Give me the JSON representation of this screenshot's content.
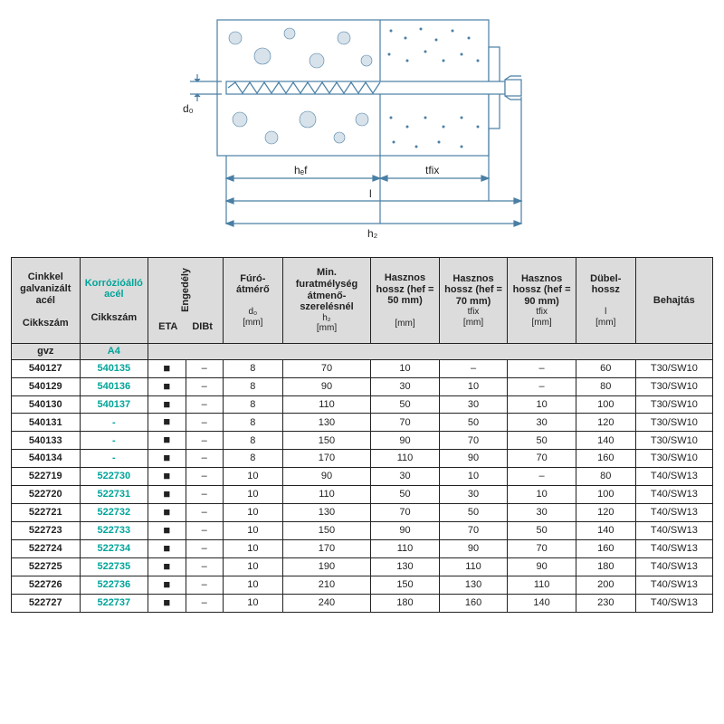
{
  "diagram": {
    "stroke": "#4a7fa5",
    "labels": {
      "d0": "d₀",
      "hef": "hₑf",
      "tfix": "tfix",
      "l": "l",
      "h2": "h₂"
    }
  },
  "header": {
    "col1_top": "Cinkkel galvanizált acél",
    "col1_bot": "Cikkszám",
    "col2_top": "Korrózióálló acél",
    "col2_bot": "Cikkszám",
    "eng": "Engedély",
    "eta": "ETA",
    "dibt": "DIBt",
    "d0_top": "Fúró-átmérő",
    "d0_sym": "d₀",
    "d0_unit": "[mm]",
    "h2_top": "Min. furatmélység átmenő-szerelésnél",
    "h2_sym": "h₂",
    "h2_unit": "[mm]",
    "hef50_top": "Hasznos hossz (hef = 50 mm)",
    "hef50_unit": "[mm]",
    "hef70_top": "Hasznos hossz (hef = 70 mm)",
    "hef70_sym": "tfix",
    "hef70_unit": "[mm]",
    "hef90_top": "Hasznos hossz (hef = 90 mm)",
    "hef90_sym": "tfix",
    "hef90_unit": "[mm]",
    "l_top": "Dübel-hossz",
    "l_sym": "l",
    "l_unit": "[mm]",
    "beh": "Behajtás",
    "sub_gvz": "gvz",
    "sub_a4": "A4"
  },
  "rows": [
    {
      "c1": "540127",
      "c2": "540135",
      "eta": "■",
      "dibt": "–",
      "d0": "8",
      "h2": "70",
      "h50": "10",
      "h70": "–",
      "h90": "–",
      "l": "60",
      "beh": "T30/SW10"
    },
    {
      "c1": "540129",
      "c2": "540136",
      "eta": "■",
      "dibt": "–",
      "d0": "8",
      "h2": "90",
      "h50": "30",
      "h70": "10",
      "h90": "–",
      "l": "80",
      "beh": "T30/SW10"
    },
    {
      "c1": "540130",
      "c2": "540137",
      "eta": "■",
      "dibt": "–",
      "d0": "8",
      "h2": "110",
      "h50": "50",
      "h70": "30",
      "h90": "10",
      "l": "100",
      "beh": "T30/SW10"
    },
    {
      "c1": "540131",
      "c2": "-",
      "eta": "■",
      "dibt": "–",
      "d0": "8",
      "h2": "130",
      "h50": "70",
      "h70": "50",
      "h90": "30",
      "l": "120",
      "beh": "T30/SW10"
    },
    {
      "c1": "540133",
      "c2": "-",
      "eta": "■",
      "dibt": "–",
      "d0": "8",
      "h2": "150",
      "h50": "90",
      "h70": "70",
      "h90": "50",
      "l": "140",
      "beh": "T30/SW10"
    },
    {
      "c1": "540134",
      "c2": "-",
      "eta": "■",
      "dibt": "–",
      "d0": "8",
      "h2": "170",
      "h50": "110",
      "h70": "90",
      "h90": "70",
      "l": "160",
      "beh": "T30/SW10"
    },
    {
      "c1": "522719",
      "c2": "522730",
      "eta": "■",
      "dibt": "–",
      "d0": "10",
      "h2": "90",
      "h50": "30",
      "h70": "10",
      "h90": "–",
      "l": "80",
      "beh": "T40/SW13"
    },
    {
      "c1": "522720",
      "c2": "522731",
      "eta": "■",
      "dibt": "–",
      "d0": "10",
      "h2": "110",
      "h50": "50",
      "h70": "30",
      "h90": "10",
      "l": "100",
      "beh": "T40/SW13"
    },
    {
      "c1": "522721",
      "c2": "522732",
      "eta": "■",
      "dibt": "–",
      "d0": "10",
      "h2": "130",
      "h50": "70",
      "h70": "50",
      "h90": "30",
      "l": "120",
      "beh": "T40/SW13"
    },
    {
      "c1": "522723",
      "c2": "522733",
      "eta": "■",
      "dibt": "–",
      "d0": "10",
      "h2": "150",
      "h50": "90",
      "h70": "70",
      "h90": "50",
      "l": "140",
      "beh": "T40/SW13"
    },
    {
      "c1": "522724",
      "c2": "522734",
      "eta": "■",
      "dibt": "–",
      "d0": "10",
      "h2": "170",
      "h50": "110",
      "h70": "90",
      "h90": "70",
      "l": "160",
      "beh": "T40/SW13"
    },
    {
      "c1": "522725",
      "c2": "522735",
      "eta": "■",
      "dibt": "–",
      "d0": "10",
      "h2": "190",
      "h50": "130",
      "h70": "110",
      "h90": "90",
      "l": "180",
      "beh": "T40/SW13"
    },
    {
      "c1": "522726",
      "c2": "522736",
      "eta": "■",
      "dibt": "–",
      "d0": "10",
      "h2": "210",
      "h50": "150",
      "h70": "130",
      "h90": "110",
      "l": "200",
      "beh": "T40/SW13"
    },
    {
      "c1": "522727",
      "c2": "522737",
      "eta": "■",
      "dibt": "–",
      "d0": "10",
      "h2": "240",
      "h50": "180",
      "h70": "160",
      "h90": "140",
      "l": "230",
      "beh": "T40/SW13"
    }
  ]
}
